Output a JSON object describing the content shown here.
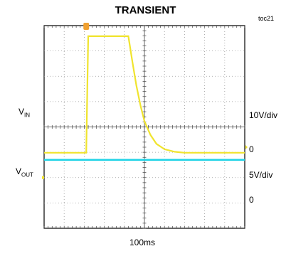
{
  "chart_data": {
    "type": "line",
    "title": "TRANSIENT",
    "figure_id": "toc21",
    "x_divisions": 10,
    "y_divisions": 8,
    "time_scale": "100ms",
    "vin": {
      "label": "V",
      "label_sub": "IN",
      "scale": "10V/div",
      "zero_label": "0",
      "color": "#f0e42e",
      "points": [
        [
          0,
          0
        ],
        [
          2.1,
          0
        ],
        [
          2.2,
          5.9
        ],
        [
          4.2,
          5.9
        ],
        [
          4.4,
          4.6
        ],
        [
          4.6,
          3.4
        ],
        [
          4.8,
          2.4
        ],
        [
          5.0,
          1.6
        ],
        [
          5.3,
          0.9
        ],
        [
          5.6,
          0.45
        ],
        [
          6.0,
          0.18
        ],
        [
          6.5,
          0.05
        ],
        [
          7.0,
          0.0
        ],
        [
          10,
          0.0
        ]
      ]
    },
    "vout": {
      "label": "V",
      "label_sub": "OUT",
      "scale": "5V/div",
      "zero_label": "0",
      "color": "#1fd3e6",
      "level_div": 0.8
    }
  }
}
